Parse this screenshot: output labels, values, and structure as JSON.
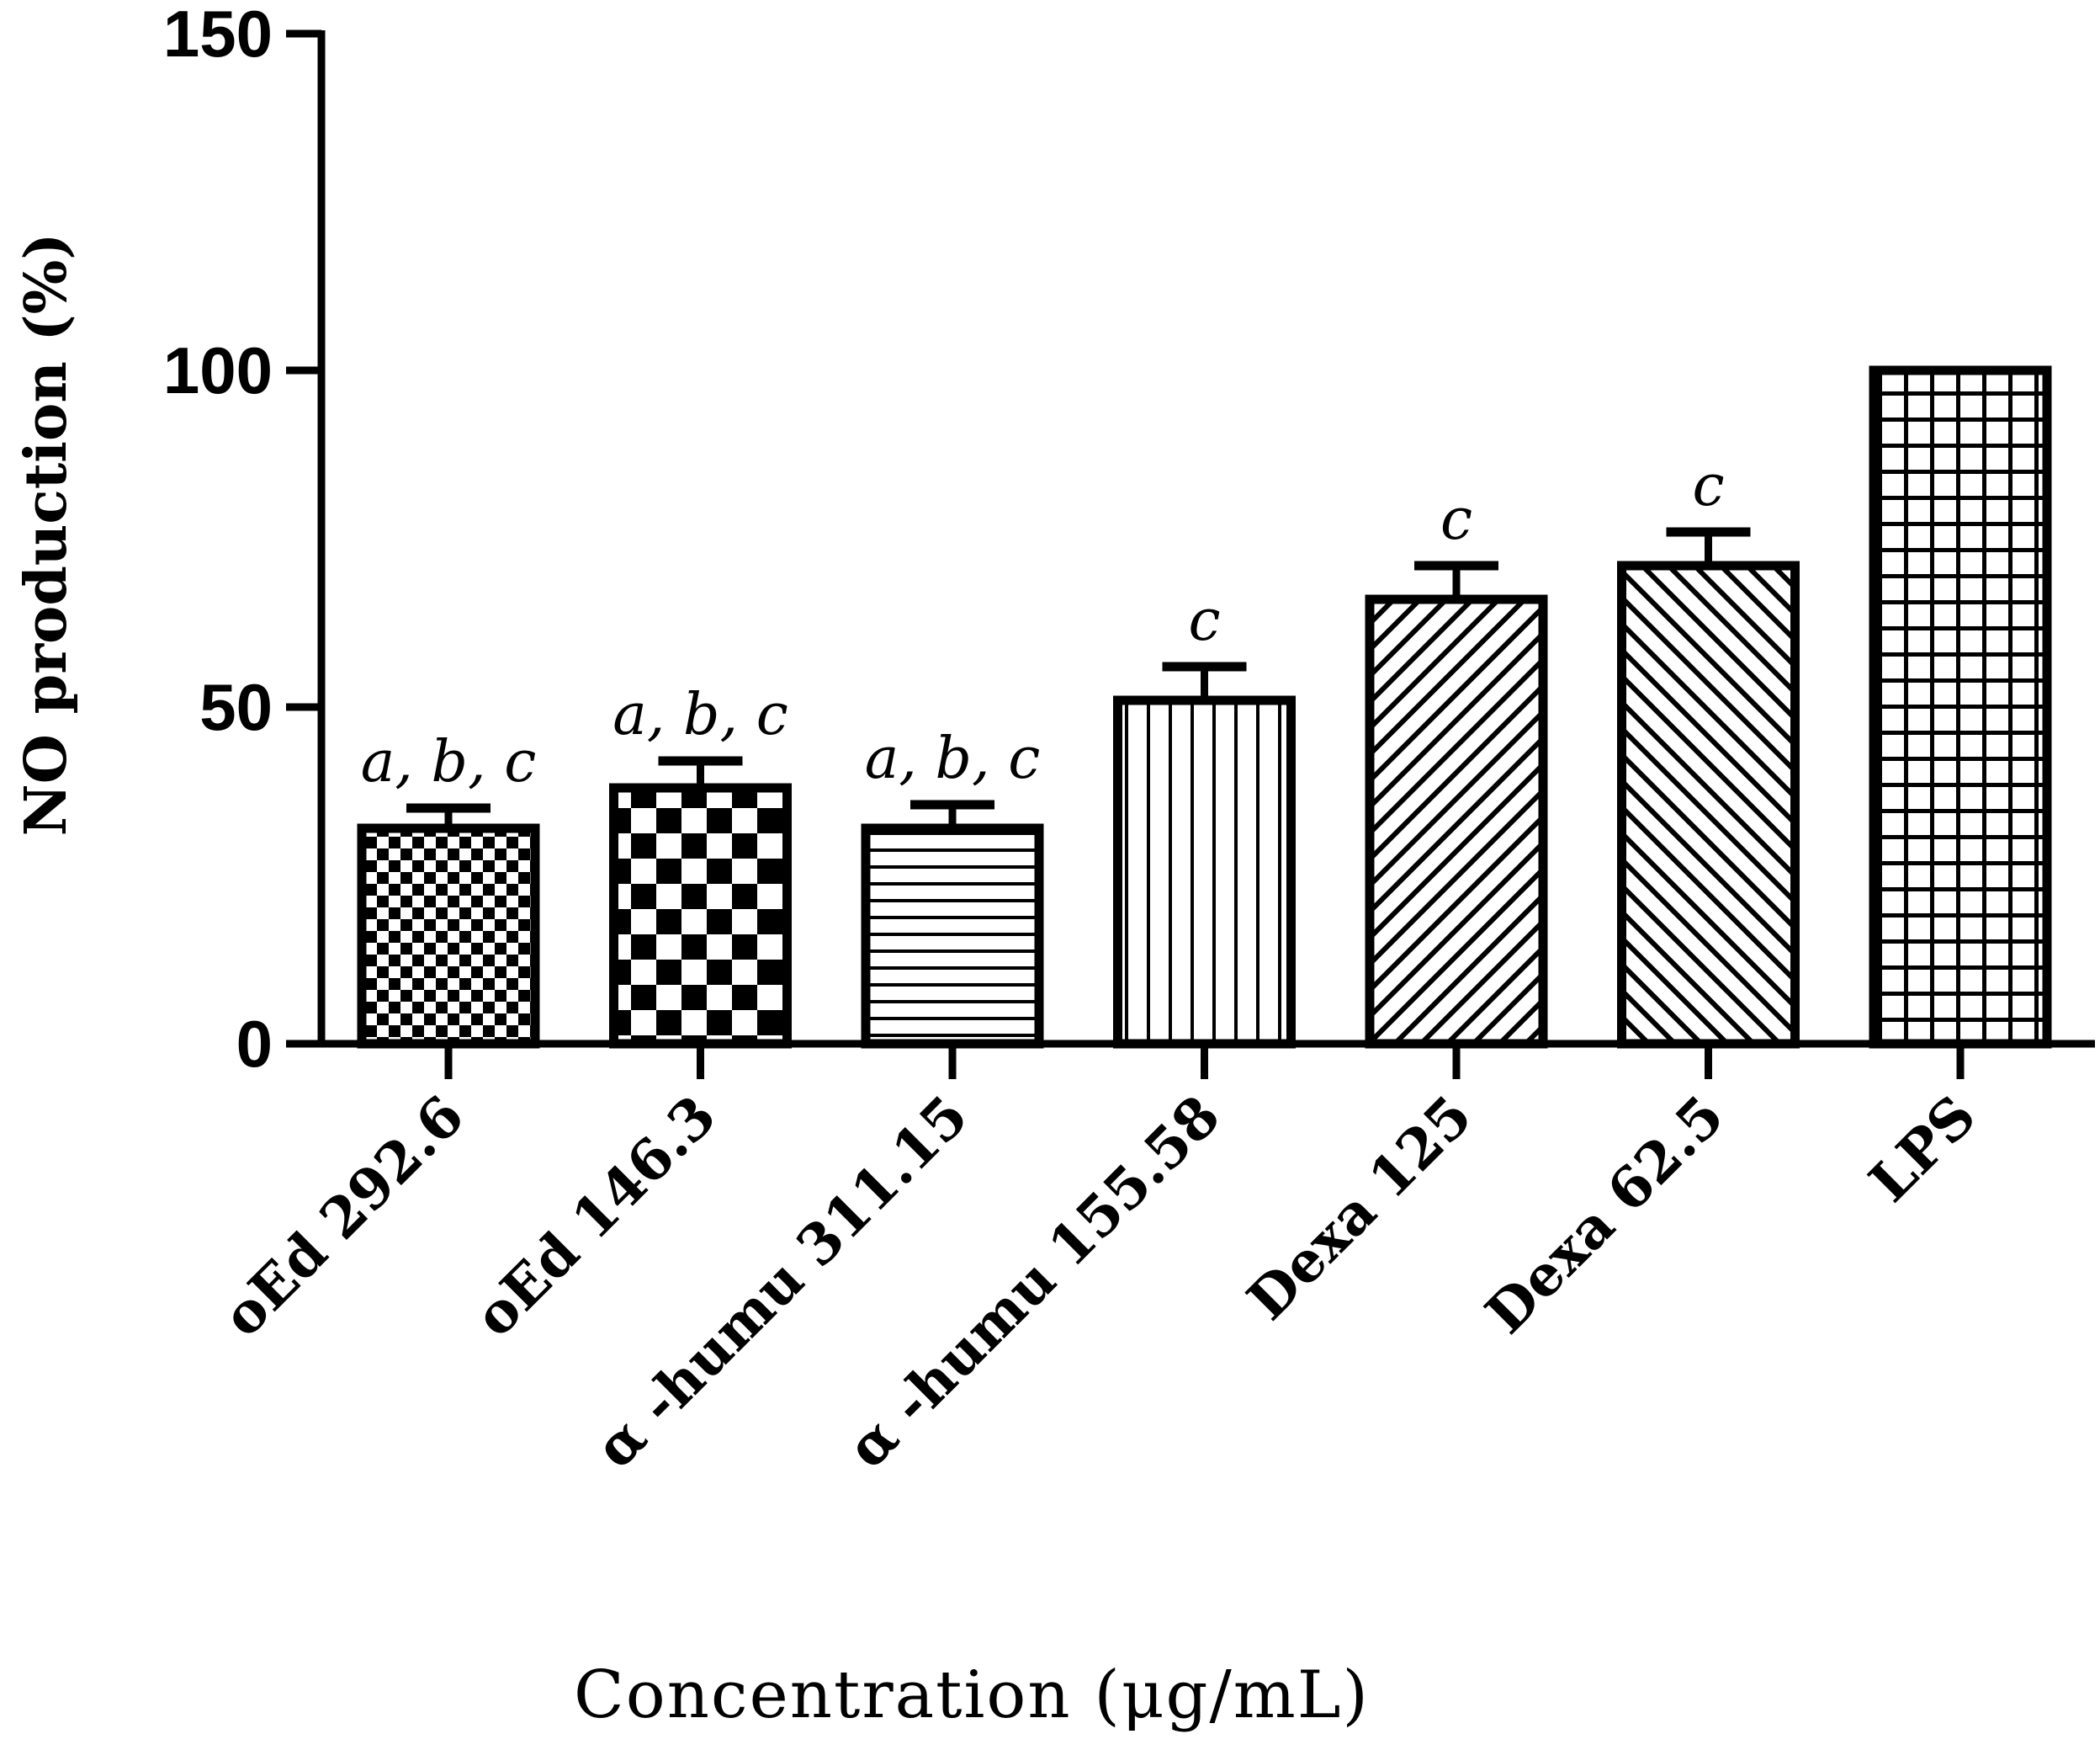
{
  "chart_data": {
    "type": "bar",
    "title": "",
    "xlabel": "Concentration (μg/mL)",
    "ylabel": "NO production (%)",
    "ylim": [
      0,
      150
    ],
    "yticks": [
      0,
      50,
      100,
      150
    ],
    "grid": false,
    "categories": [
      "oEd 292.6",
      "oEd 146.3",
      "α -humu 311.15",
      "α -humu 155.58",
      "Dexa 125",
      "Dexa 62.5",
      "LPS"
    ],
    "values": [
      32,
      38,
      32,
      51,
      66,
      71,
      100
    ],
    "errors": [
      3,
      4,
      3.5,
      5,
      5,
      5,
      0
    ],
    "annotations": [
      "a,b,c",
      "a,b,c",
      "a,b,c",
      "c",
      "c",
      "c",
      ""
    ],
    "patterns": [
      "fine-checker",
      "checker",
      "horizontal-lines",
      "vertical-lines",
      "diagonal-up",
      "diagonal-down",
      "grid"
    ]
  }
}
